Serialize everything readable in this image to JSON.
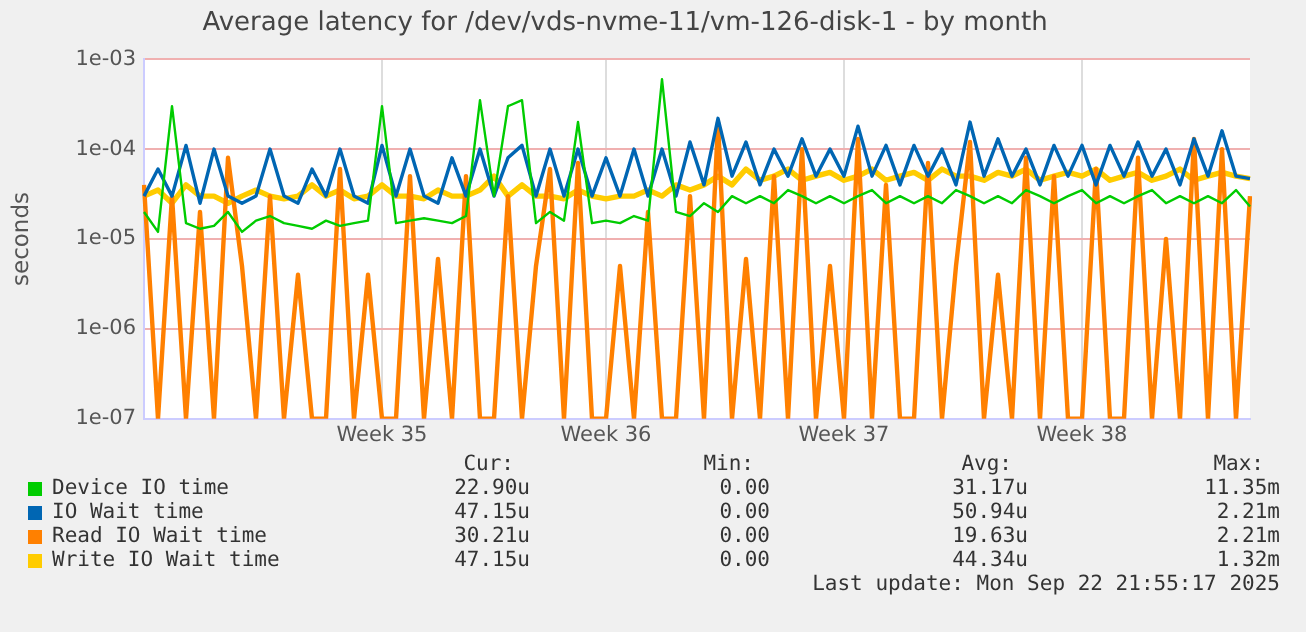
{
  "chart_data": {
    "type": "line",
    "title": "Average latency for /dev/vds-nvme-11/vm-126-disk-1 - by month",
    "ylabel": "seconds",
    "log": "y",
    "grid": true,
    "legend": "bottom",
    "marker": "none",
    "line_style": "solid",
    "categories": [
      null,
      null,
      null,
      null,
      null,
      null,
      null,
      null,
      null,
      null,
      null,
      null,
      null,
      null,
      null,
      null,
      null,
      "Week 35",
      null,
      null,
      null,
      null,
      null,
      null,
      null,
      null,
      null,
      null,
      null,
      null,
      null,
      null,
      null,
      "Week 36",
      null,
      null,
      null,
      null,
      null,
      null,
      null,
      null,
      null,
      null,
      null,
      null,
      null,
      null,
      null,
      null,
      "Week 37",
      null,
      null,
      null,
      null,
      null,
      null,
      null,
      null,
      null,
      null,
      null,
      null,
      null,
      null,
      null,
      null,
      "Week 38",
      null,
      null,
      null,
      null,
      null,
      null,
      null,
      null,
      null,
      null,
      null,
      null
    ],
    "ylim": [
      1e-07,
      0.001
    ],
    "yticks": [
      {
        "value": 1e-07,
        "label": "1e-07"
      },
      {
        "value": 1e-06,
        "label": "1e-06"
      },
      {
        "value": 1e-05,
        "label": "1e-05"
      },
      {
        "value": 0.0001,
        "label": "1e-04"
      },
      {
        "value": 0.001,
        "label": "1e-03"
      }
    ],
    "series": [
      {
        "name": "Device IO time",
        "color": "#00cc00",
        "values": [
          2e-05,
          1.2e-05,
          0.0003,
          1.5e-05,
          1.3e-05,
          1.4e-05,
          2e-05,
          1.2e-05,
          1.6e-05,
          1.8e-05,
          1.5e-05,
          1.4e-05,
          1.3e-05,
          1.6e-05,
          1.4e-05,
          1.5e-05,
          1.6e-05,
          0.0003,
          1.5e-05,
          1.6e-05,
          1.7e-05,
          1.6e-05,
          1.5e-05,
          1.8e-05,
          0.00035,
          3e-05,
          0.0003,
          0.00035,
          1.5e-05,
          2e-05,
          1.6e-05,
          0.0002,
          1.5e-05,
          1.6e-05,
          1.5e-05,
          1.8e-05,
          1.6e-05,
          0.0006,
          2e-05,
          1.8e-05,
          2.5e-05,
          2e-05,
          3e-05,
          2.5e-05,
          3e-05,
          2.5e-05,
          3.5e-05,
          3e-05,
          2.5e-05,
          3e-05,
          2.5e-05,
          3e-05,
          3.5e-05,
          2.5e-05,
          3e-05,
          2.5e-05,
          3e-05,
          2.5e-05,
          3.5e-05,
          3e-05,
          2.5e-05,
          3e-05,
          2.5e-05,
          3.5e-05,
          3e-05,
          2.5e-05,
          3e-05,
          3.5e-05,
          2.5e-05,
          3e-05,
          2.5e-05,
          3e-05,
          3.5e-05,
          2.5e-05,
          3e-05,
          2.5e-05,
          3e-05,
          2.5e-05,
          3.5e-05,
          2.3e-05
        ]
      },
      {
        "name": "IO Wait time",
        "color": "#0066b3",
        "values": [
          3e-05,
          6e-05,
          3e-05,
          0.00011,
          2.5e-05,
          0.0001,
          3e-05,
          2.5e-05,
          3e-05,
          0.0001,
          3e-05,
          2.5e-05,
          6e-05,
          3e-05,
          0.0001,
          3e-05,
          2.5e-05,
          0.00011,
          3e-05,
          0.0001,
          3e-05,
          2.5e-05,
          8e-05,
          3e-05,
          0.0001,
          3e-05,
          8e-05,
          0.00011,
          3e-05,
          0.0001,
          3e-05,
          0.0001,
          3e-05,
          8e-05,
          3e-05,
          0.0001,
          3e-05,
          0.0001,
          3e-05,
          0.00012,
          4e-05,
          0.00022,
          5e-05,
          0.00012,
          4e-05,
          0.0001,
          5e-05,
          0.00013,
          5e-05,
          0.0001,
          5e-05,
          0.00018,
          5e-05,
          0.00011,
          4e-05,
          0.00011,
          5e-05,
          0.0001,
          4e-05,
          0.0002,
          5e-05,
          0.00013,
          5e-05,
          0.0001,
          4e-05,
          0.00011,
          5e-05,
          0.00011,
          4e-05,
          0.00011,
          5e-05,
          0.00012,
          5e-05,
          0.0001,
          4e-05,
          0.00013,
          5e-05,
          0.00016,
          5e-05,
          4.7e-05
        ]
      },
      {
        "name": "Read IO Wait time",
        "color": "#ff8000",
        "values": [
          4e-05,
          1e-07,
          3e-05,
          1e-07,
          2e-05,
          1e-07,
          8e-05,
          5e-06,
          1e-07,
          3e-05,
          1e-07,
          4e-06,
          1e-07,
          1e-07,
          6e-05,
          1e-07,
          4e-06,
          1e-07,
          1e-07,
          5e-05,
          1e-07,
          6e-06,
          1e-07,
          5e-05,
          1e-07,
          1e-07,
          3e-05,
          1e-07,
          5e-06,
          6e-05,
          1e-07,
          7e-05,
          1e-07,
          1e-07,
          5e-06,
          1e-07,
          2e-05,
          1e-07,
          1e-07,
          3e-05,
          1e-07,
          0.0002,
          1e-07,
          6e-06,
          1e-07,
          5e-05,
          1e-07,
          0.0001,
          1e-07,
          5e-06,
          1e-07,
          0.00013,
          1e-07,
          4e-05,
          1e-07,
          1e-07,
          7e-05,
          1e-07,
          5e-06,
          0.00012,
          1e-07,
          4e-06,
          1e-07,
          8e-05,
          1e-07,
          5e-05,
          1e-07,
          1e-07,
          6e-05,
          1e-07,
          1e-07,
          8e-05,
          1e-07,
          1e-05,
          1e-07,
          0.00013,
          1e-07,
          0.0001,
          1e-07,
          3e-05
        ]
      },
      {
        "name": "Write IO Wait time",
        "color": "#ffcc00",
        "values": [
          3e-05,
          3.5e-05,
          2.5e-05,
          4e-05,
          3e-05,
          3e-05,
          2.5e-05,
          3e-05,
          3.5e-05,
          3e-05,
          2.8e-05,
          3e-05,
          4e-05,
          3e-05,
          3.5e-05,
          2.8e-05,
          3e-05,
          4e-05,
          3e-05,
          3e-05,
          2.8e-05,
          3.5e-05,
          3e-05,
          3e-05,
          3.5e-05,
          5e-05,
          3e-05,
          4e-05,
          3e-05,
          3e-05,
          2.8e-05,
          3.5e-05,
          3e-05,
          2.8e-05,
          3e-05,
          3e-05,
          3.5e-05,
          3e-05,
          4e-05,
          3.5e-05,
          4e-05,
          5e-05,
          4e-05,
          6e-05,
          4.5e-05,
          5e-05,
          6e-05,
          4.5e-05,
          5e-05,
          5.5e-05,
          4.5e-05,
          5e-05,
          6e-05,
          4.5e-05,
          5e-05,
          5.5e-05,
          4.5e-05,
          6e-05,
          5e-05,
          5e-05,
          4.5e-05,
          5.5e-05,
          5e-05,
          6e-05,
          4.5e-05,
          5e-05,
          5.5e-05,
          5e-05,
          6e-05,
          4.5e-05,
          5e-05,
          5.5e-05,
          4.5e-05,
          5e-05,
          6e-05,
          4.5e-05,
          5e-05,
          5.5e-05,
          5e-05,
          4.7e-05
        ]
      }
    ],
    "annotations": [
      "Cur:",
      "Min:",
      "Avg:",
      "Max:",
      "22.90u",
      "0.00",
      "31.17u",
      "11.35m",
      "47.15u",
      "0.00",
      "50.94u",
      "2.21m",
      "30.21u",
      "0.00",
      "19.63u",
      "2.21m",
      "47.15u",
      "0.00",
      "44.34u",
      "1.32m",
      "Last update: Mon Sep 22 21:55:17 2025"
    ]
  }
}
